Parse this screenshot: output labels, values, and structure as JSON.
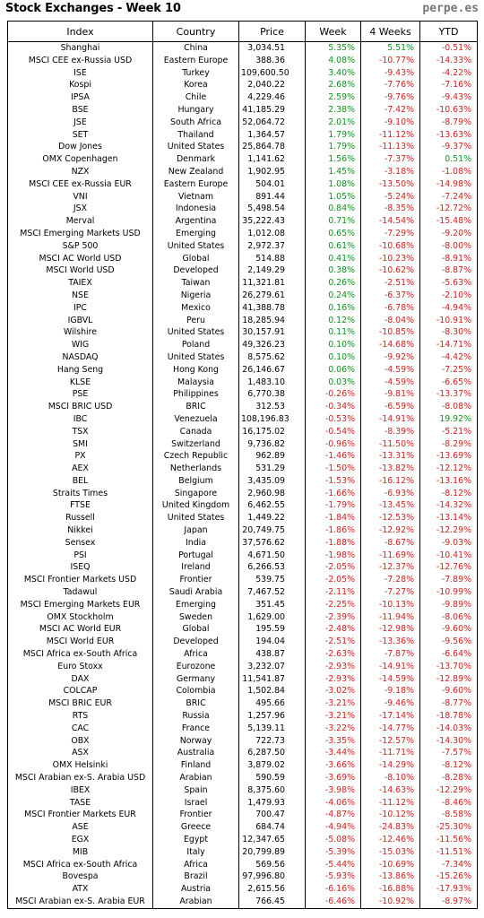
{
  "title": "Stock Exchanges - Week 10",
  "brand": "perpe.es",
  "columns": [
    "Index",
    "Country",
    "Price",
    "Week",
    "4 Weeks",
    "YTD"
  ],
  "rows": [
    [
      "Shanghai",
      "China",
      "3,034.51",
      "5.35%",
      "5.51%",
      "-0.51%"
    ],
    [
      "MSCI CEE ex-Russia USD",
      "Eastern Europe",
      "388.36",
      "4.08%",
      "-10.77%",
      "-14.33%"
    ],
    [
      "ISE",
      "Turkey",
      "109,600.50",
      "3.40%",
      "-9.43%",
      "-4.22%"
    ],
    [
      "Kospi",
      "Korea",
      "2,040.22",
      "2.68%",
      "-7.76%",
      "-7.16%"
    ],
    [
      "IPSA",
      "Chile",
      "4,229.46",
      "2.59%",
      "-9.76%",
      "-9.43%"
    ],
    [
      "BSE",
      "Hungary",
      "41,185.29",
      "2.38%",
      "-7.42%",
      "-10.63%"
    ],
    [
      "JSE",
      "South Africa",
      "52,064.72",
      "2.01%",
      "-9.10%",
      "-8.79%"
    ],
    [
      "SET",
      "Thailand",
      "1,364.57",
      "1.79%",
      "-11.12%",
      "-13.63%"
    ],
    [
      "Dow Jones",
      "United States",
      "25,864.78",
      "1.79%",
      "-11.13%",
      "-9.37%"
    ],
    [
      "OMX Copenhagen",
      "Denmark",
      "1,141.62",
      "1.56%",
      "-7.37%",
      "0.51%"
    ],
    [
      "NZX",
      "New Zealand",
      "1,902.95",
      "1.45%",
      "-3.18%",
      "-1.08%"
    ],
    [
      "MSCI CEE ex-Russia EUR",
      "Eastern Europe",
      "504.01",
      "1.08%",
      "-13.50%",
      "-14.98%"
    ],
    [
      "VNI",
      "Vietnam",
      "891.44",
      "1.05%",
      "-5.24%",
      "-7.24%"
    ],
    [
      "JSX",
      "Indonesia",
      "5,498.54",
      "0.84%",
      "-8.35%",
      "-12.72%"
    ],
    [
      "Merval",
      "Argentina",
      "35,222.43",
      "0.71%",
      "-14.54%",
      "-15.48%"
    ],
    [
      "MSCI Emerging Markets USD",
      "Emerging",
      "1,012.08",
      "0.65%",
      "-7.29%",
      "-9.20%"
    ],
    [
      "S&P 500",
      "United States",
      "2,972.37",
      "0.61%",
      "-10.68%",
      "-8.00%"
    ],
    [
      "MSCI AC World USD",
      "Global",
      "514.88",
      "0.41%",
      "-10.23%",
      "-8.91%"
    ],
    [
      "MSCI World USD",
      "Developed",
      "2,149.29",
      "0.38%",
      "-10.62%",
      "-8.87%"
    ],
    [
      "TAIEX",
      "Taiwan",
      "11,321.81",
      "0.26%",
      "-2.51%",
      "-5.63%"
    ],
    [
      "NSE",
      "Nigeria",
      "26,279.61",
      "0.24%",
      "-6.37%",
      "-2.10%"
    ],
    [
      "IPC",
      "Mexico",
      "41,388.78",
      "0.16%",
      "-6.78%",
      "-4.94%"
    ],
    [
      "IGBVL",
      "Peru",
      "18,285.94",
      "0.12%",
      "-8.04%",
      "-10.91%"
    ],
    [
      "Wilshire",
      "United States",
      "30,157.91",
      "0.11%",
      "-10.85%",
      "-8.30%"
    ],
    [
      "WIG",
      "Poland",
      "49,326.23",
      "0.10%",
      "-14.68%",
      "-14.71%"
    ],
    [
      "NASDAQ",
      "United States",
      "8,575.62",
      "0.10%",
      "-9.92%",
      "-4.42%"
    ],
    [
      "Hang Seng",
      "Hong Kong",
      "26,146.67",
      "0.06%",
      "-4.59%",
      "-7.25%"
    ],
    [
      "KLSE",
      "Malaysia",
      "1,483.10",
      "0.03%",
      "-4.59%",
      "-6.65%"
    ],
    [
      "PSE",
      "Philippines",
      "6,770.38",
      "-0.26%",
      "-9.81%",
      "-13.37%"
    ],
    [
      "MSCI BRIC USD",
      "BRIC",
      "312.53",
      "-0.34%",
      "-6.59%",
      "-8.08%"
    ],
    [
      "IBC",
      "Venezuela",
      "108,196.83",
      "-0.53%",
      "-14.91%",
      "19.92%"
    ],
    [
      "TSX",
      "Canada",
      "16,175.02",
      "-0.54%",
      "-8.39%",
      "-5.21%"
    ],
    [
      "SMI",
      "Switzerland",
      "9,736.82",
      "-0.96%",
      "-11.50%",
      "-8.29%"
    ],
    [
      "PX",
      "Czech Republic",
      "962.89",
      "-1.46%",
      "-13.31%",
      "-13.69%"
    ],
    [
      "AEX",
      "Netherlands",
      "531.29",
      "-1.50%",
      "-13.82%",
      "-12.12%"
    ],
    [
      "BEL",
      "Belgium",
      "3,435.09",
      "-1.53%",
      "-16.12%",
      "-13.16%"
    ],
    [
      "Straits Times",
      "Singapore",
      "2,960.98",
      "-1.66%",
      "-6.93%",
      "-8.12%"
    ],
    [
      "FTSE",
      "United Kingdom",
      "6,462.55",
      "-1.79%",
      "-13.45%",
      "-14.32%"
    ],
    [
      "Russell",
      "United States",
      "1,449.22",
      "-1.84%",
      "-12.53%",
      "-13.14%"
    ],
    [
      "Nikkei",
      "Japan",
      "20,749.75",
      "-1.86%",
      "-12.92%",
      "-12.29%"
    ],
    [
      "Sensex",
      "India",
      "37,576.62",
      "-1.88%",
      "-8.67%",
      "-9.03%"
    ],
    [
      "PSI",
      "Portugal",
      "4,671.50",
      "-1.98%",
      "-11.69%",
      "-10.41%"
    ],
    [
      "ISEQ",
      "Ireland",
      "6,266.53",
      "-2.05%",
      "-12.37%",
      "-12.76%"
    ],
    [
      "MSCI Frontier Markets USD",
      "Frontier",
      "539.75",
      "-2.05%",
      "-7.28%",
      "-7.89%"
    ],
    [
      "Tadawul",
      "Saudi Arabia",
      "7,467.52",
      "-2.11%",
      "-7.27%",
      "-10.99%"
    ],
    [
      "MSCI Emerging Markets EUR",
      "Emerging",
      "351.45",
      "-2.25%",
      "-10.13%",
      "-9.89%"
    ],
    [
      "OMX Stockholm",
      "Sweden",
      "1,629.00",
      "-2.39%",
      "-11.94%",
      "-8.06%"
    ],
    [
      "MSCI AC World EUR",
      "Global",
      "195.59",
      "-2.48%",
      "-12.98%",
      "-9.60%"
    ],
    [
      "MSCI World EUR",
      "Developed",
      "194.04",
      "-2.51%",
      "-13.36%",
      "-9.56%"
    ],
    [
      "MSCI Africa ex-South Africa",
      "Africa",
      "438.87",
      "-2.63%",
      "-7.87%",
      "-6.64%"
    ],
    [
      "Euro Stoxx",
      "Eurozone",
      "3,232.07",
      "-2.93%",
      "-14.91%",
      "-13.70%"
    ],
    [
      "DAX",
      "Germany",
      "11,541.87",
      "-2.93%",
      "-14.59%",
      "-12.89%"
    ],
    [
      "COLCAP",
      "Colombia",
      "1,502.84",
      "-3.02%",
      "-9.18%",
      "-9.60%"
    ],
    [
      "MSCI BRIC EUR",
      "BRIC",
      "495.66",
      "-3.21%",
      "-9.46%",
      "-8.77%"
    ],
    [
      "RTS",
      "Russia",
      "1,257.96",
      "-3.21%",
      "-17.14%",
      "-18.78%"
    ],
    [
      "CAC",
      "France",
      "5,139.11",
      "-3.22%",
      "-14.77%",
      "-14.03%"
    ],
    [
      "OBX",
      "Norway",
      "722.73",
      "-3.35%",
      "-12.57%",
      "-14.30%"
    ],
    [
      "ASX",
      "Australia",
      "6,287.50",
      "-3.44%",
      "-11.71%",
      "-7.57%"
    ],
    [
      "OMX Helsinki",
      "Finland",
      "3,879.02",
      "-3.66%",
      "-14.29%",
      "-8.12%"
    ],
    [
      "MSCI Arabian ex-S. Arabia USD",
      "Arabian",
      "590.59",
      "-3.69%",
      "-8.10%",
      "-8.28%"
    ],
    [
      "IBEX",
      "Spain",
      "8,375.60",
      "-3.98%",
      "-14.63%",
      "-12.29%"
    ],
    [
      "TASE",
      "Israel",
      "1,479.93",
      "-4.06%",
      "-11.12%",
      "-8.46%"
    ],
    [
      "MSCI Frontier Markets EUR",
      "Frontier",
      "700.47",
      "-4.87%",
      "-10.12%",
      "-8.58%"
    ],
    [
      "ASE",
      "Greece",
      "684.74",
      "-4.94%",
      "-24.83%",
      "-25.30%"
    ],
    [
      "EGX",
      "Egypt",
      "12,347.65",
      "-5.08%",
      "-12.46%",
      "-11.56%"
    ],
    [
      "MIB",
      "Italy",
      "20,799.89",
      "-5.39%",
      "-15.03%",
      "-11.51%"
    ],
    [
      "MSCI Africa ex-South Africa",
      "Africa",
      "569.56",
      "-5.44%",
      "-10.69%",
      "-7.34%"
    ],
    [
      "Bovespa",
      "Brazil",
      "97,996.80",
      "-5.93%",
      "-13.86%",
      "-15.26%"
    ],
    [
      "ATX",
      "Austria",
      "2,615.56",
      "-6.16%",
      "-16.88%",
      "-17.93%"
    ],
    [
      "MSCI Arabian ex-S. Arabia EUR",
      "Arabian",
      "766.45",
      "-6.46%",
      "-10.92%",
      "-8.97%"
    ]
  ],
  "colors": {
    "positive": "#109020",
    "negative": "#d02020"
  }
}
